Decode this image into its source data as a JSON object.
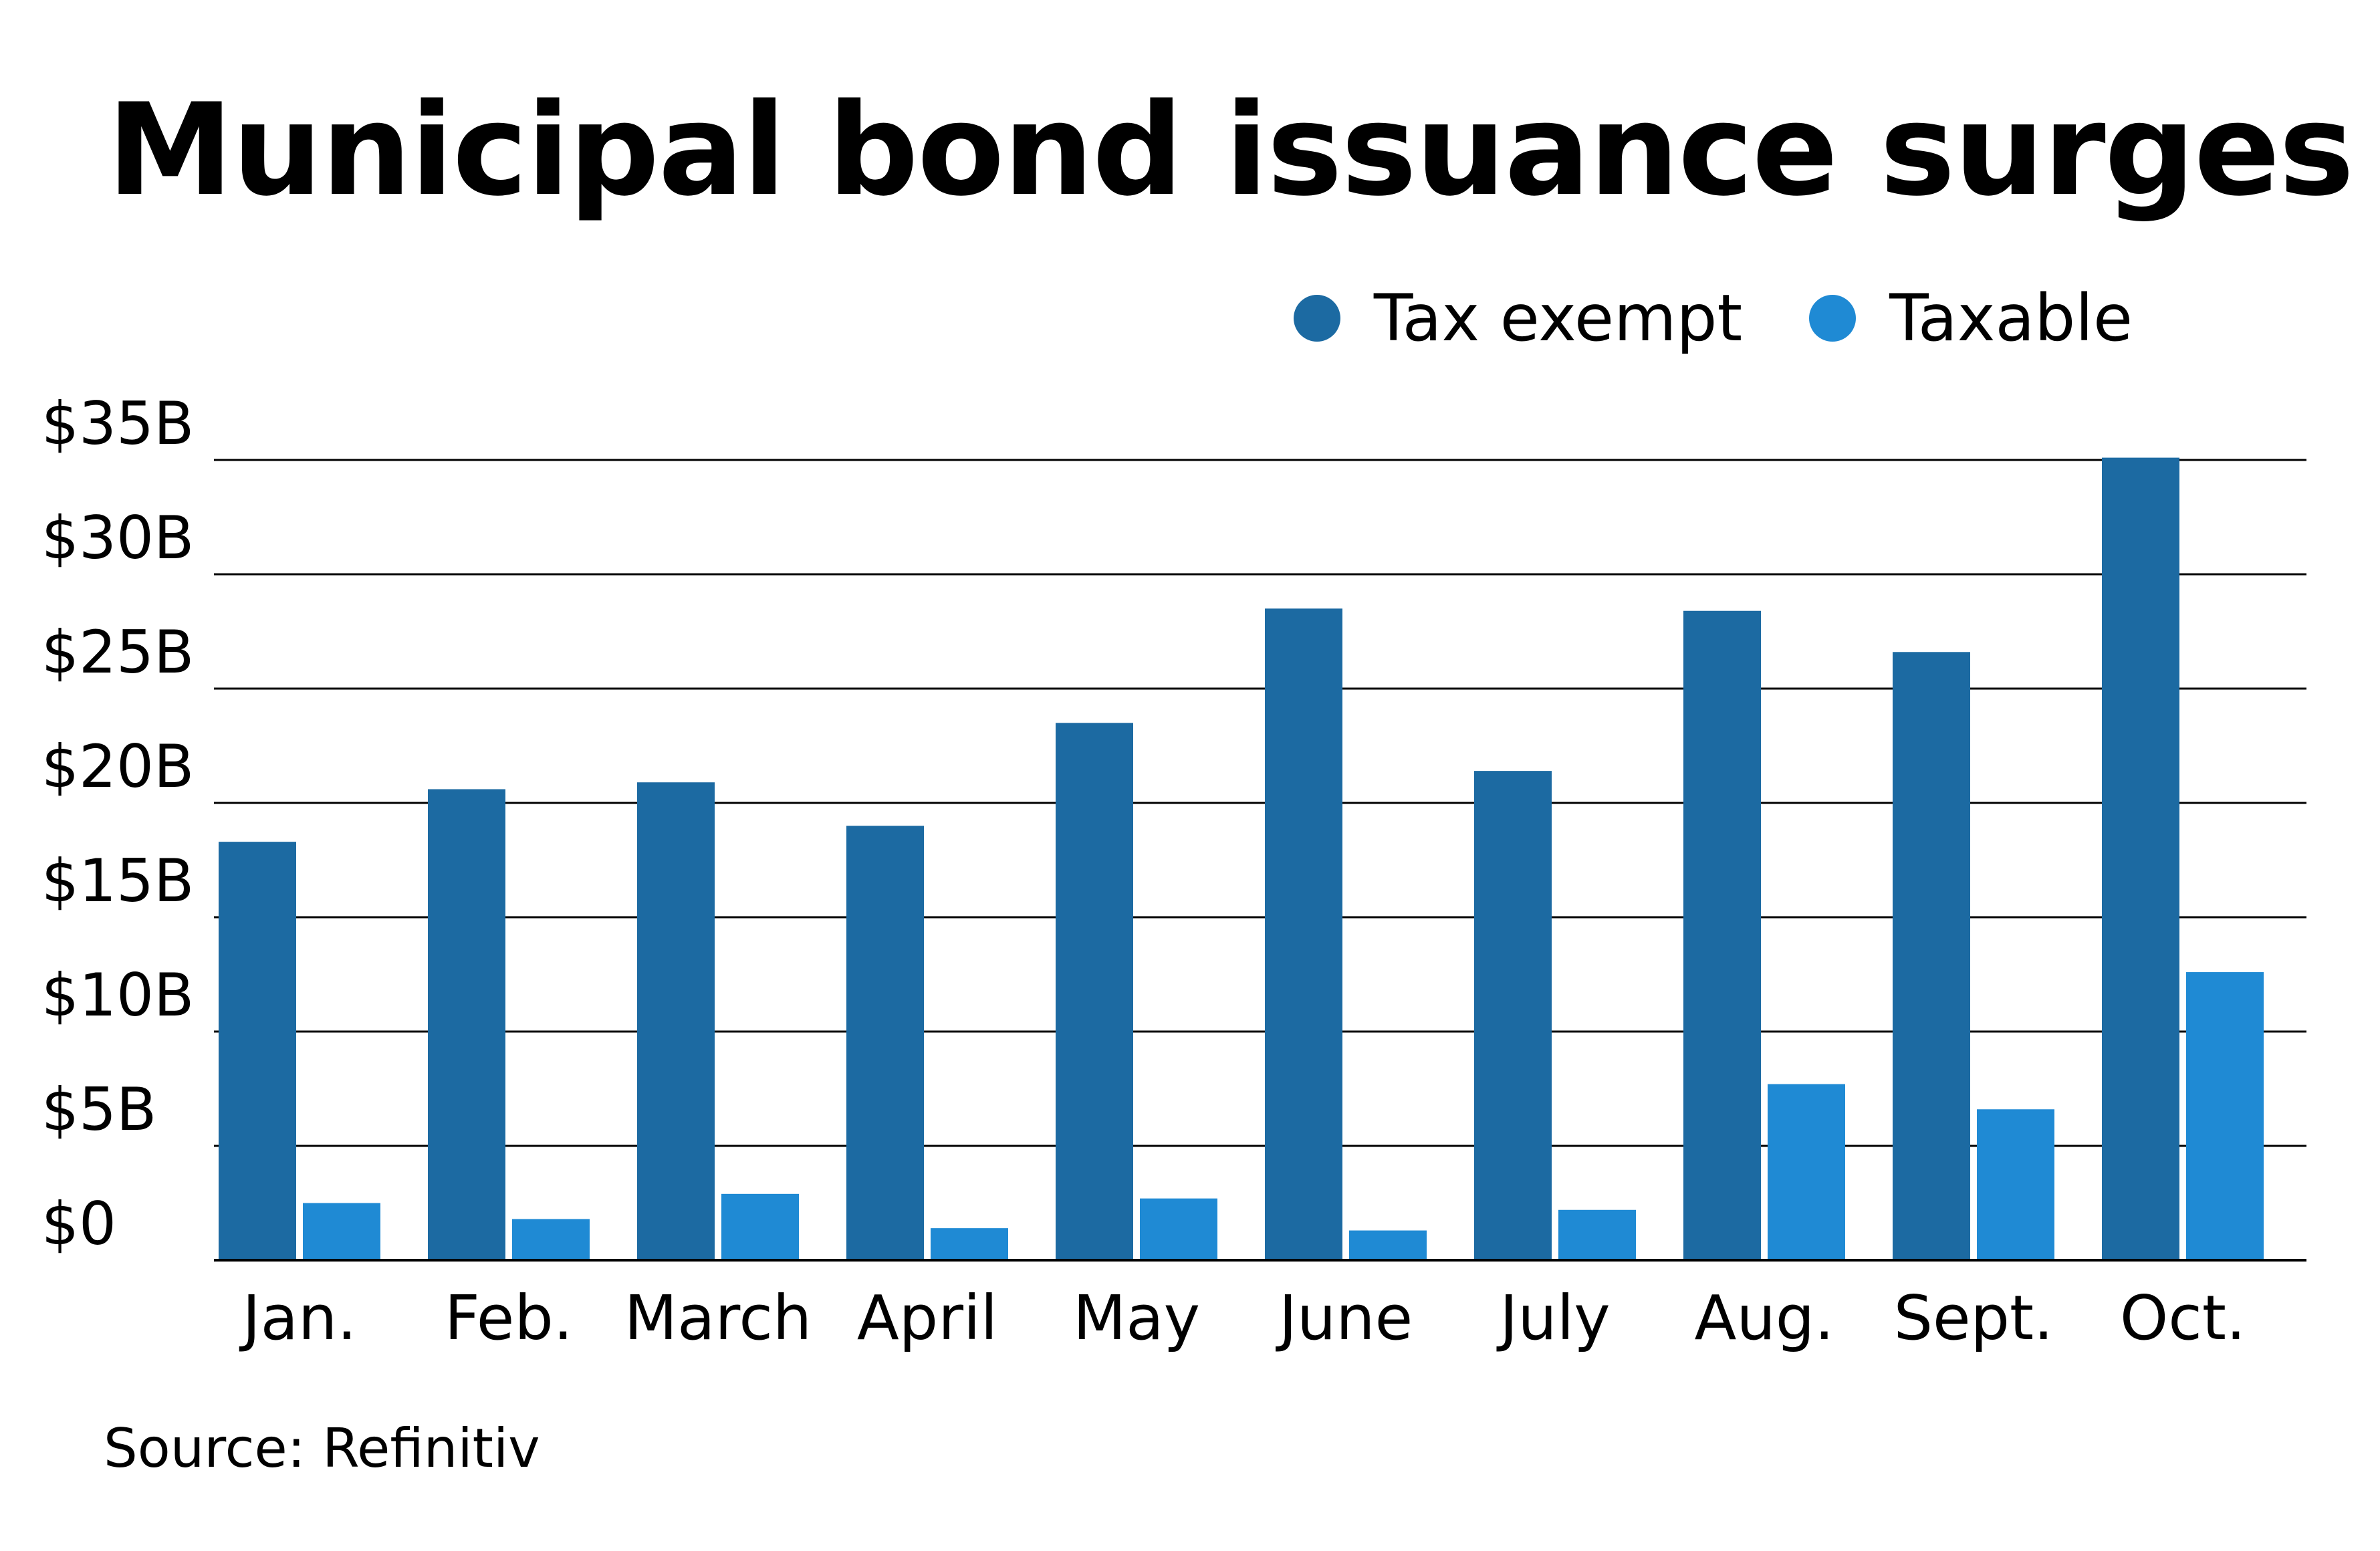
{
  "chart_data": {
    "type": "bar",
    "title": "Municipal bond issuance surges",
    "source": "Source: Refinitiv",
    "categories": [
      "Jan.",
      "Feb.",
      "March",
      "April",
      "May",
      "June",
      "July",
      "Aug.",
      "Sept.",
      "Oct."
    ],
    "series": [
      {
        "name": "Tax exempt",
        "color": "#1c6aa2",
        "values": [
          18.3,
          20.6,
          20.9,
          19.0,
          23.5,
          28.5,
          21.4,
          28.4,
          26.6,
          35.1
        ]
      },
      {
        "name": "Taxable",
        "color": "#1f8ad4",
        "values": [
          2.5,
          1.8,
          2.9,
          1.4,
          2.7,
          1.3,
          2.2,
          7.7,
          6.6,
          12.6
        ]
      }
    ],
    "yticks": [
      0,
      5,
      10,
      15,
      20,
      25,
      30,
      35
    ],
    "ytick_labels": [
      "$0",
      "$5B",
      "$10B",
      "$15B",
      "$20B",
      "$25B",
      "$30B",
      "$35B"
    ],
    "ylim": [
      0,
      35
    ],
    "grid": true,
    "legend_position": "top-right"
  }
}
